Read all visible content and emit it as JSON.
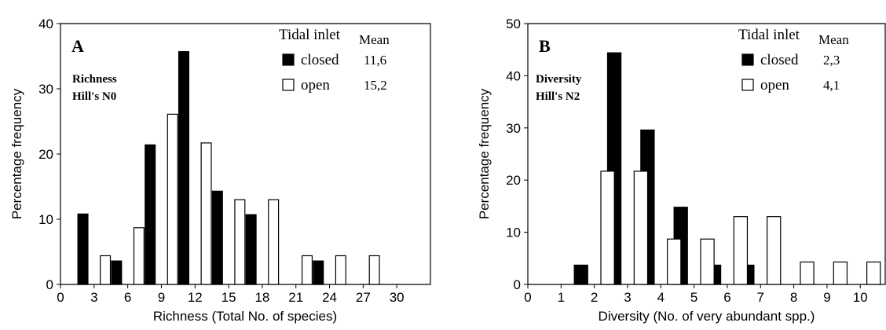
{
  "chart_data": [
    {
      "type": "bar",
      "panel": "A",
      "annotation": [
        "Richness",
        "Hill's N0"
      ],
      "x_label": "Richness (Total No. of species)",
      "y_label": "Percentage frequency",
      "legend_title": "Tidal inlet",
      "mean_title": "Mean",
      "xlim": [
        0,
        33
      ],
      "xticks": [
        0,
        3,
        6,
        9,
        12,
        15,
        18,
        21,
        24,
        27,
        30
      ],
      "ylim": [
        0,
        40
      ],
      "yticks": [
        0,
        10,
        20,
        30,
        40
      ],
      "series": [
        {
          "name": "closed",
          "color": "#000000",
          "mean": {
            "value": 11.6,
            "label": "11,6"
          },
          "x": [
            2,
            5,
            8,
            11,
            14,
            17,
            23
          ],
          "values": [
            10.8,
            3.6,
            21.4,
            35.7,
            14.3,
            10.7,
            3.6
          ]
        },
        {
          "name": "open",
          "color": "#ffffff",
          "mean": {
            "value": 15.2,
            "label": "15,2"
          },
          "x": [
            4,
            7,
            10,
            13,
            16,
            19,
            22,
            25,
            28
          ],
          "values": [
            4.4,
            8.7,
            26.1,
            21.7,
            13,
            13,
            4.4,
            4.4,
            4.4
          ]
        }
      ]
    },
    {
      "type": "bar",
      "panel": "B",
      "annotation": [
        "Diversity",
        "Hill's N2"
      ],
      "x_label": "Diversity (No. of very abundant spp.)",
      "y_label": "Percentage frequency",
      "legend_title": "Tidal inlet",
      "mean_title": "Mean",
      "xlim": [
        0,
        10.75
      ],
      "xticks": [
        0,
        1,
        2,
        3,
        4,
        5,
        6,
        7,
        8,
        9,
        10
      ],
      "ylim": [
        0,
        50
      ],
      "yticks": [
        0,
        10,
        20,
        30,
        40,
        50
      ],
      "series": [
        {
          "name": "closed",
          "color": "#000000",
          "mean": {
            "value": 2.3,
            "label": "2,3"
          },
          "x": [
            1.6,
            2.6,
            3.6,
            4.6,
            5.6,
            6.6
          ],
          "values": [
            3.7,
            44.4,
            29.6,
            14.8,
            3.7,
            3.7
          ]
        },
        {
          "name": "open",
          "color": "#ffffff",
          "mean": {
            "value": 4.1,
            "label": "4,1"
          },
          "x": [
            2.4,
            3.4,
            4.4,
            5.4,
            6.4,
            7.4,
            8.4,
            9.4,
            10.4
          ],
          "values": [
            21.7,
            21.7,
            8.7,
            8.7,
            13,
            13,
            4.3,
            4.3,
            4.3
          ]
        }
      ]
    }
  ]
}
